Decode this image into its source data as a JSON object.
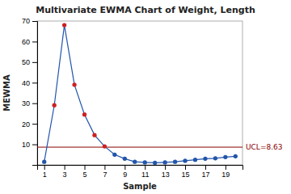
{
  "chart_data": {
    "type": "line",
    "title": "Multivariate EWMA Chart of Weight, Length",
    "x_label": "Sample",
    "y_label": "MEWMA",
    "x": [
      1,
      2,
      3,
      4,
      5,
      6,
      7,
      8,
      9,
      10,
      11,
      12,
      13,
      14,
      15,
      16,
      17,
      18,
      19,
      20
    ],
    "values": [
      1.5,
      29.0,
      68.0,
      39.0,
      24.5,
      14.5,
      9.0,
      5.0,
      3.0,
      1.5,
      1.2,
      1.0,
      1.2,
      1.5,
      2.0,
      2.5,
      3.0,
      3.2,
      3.8,
      4.2
    ],
    "color": "#2255AA",
    "colors": [
      "#2255AA",
      "#CC2222",
      "#CC2222",
      "#CC2222",
      "#CC2222",
      "#CC2222",
      "#CC2222",
      "#2255AA",
      "#2255AA",
      "#2255AA",
      "#2255AA",
      "#2255AA",
      "#2255AA",
      "#2255AA",
      "#2255AA",
      "#2255AA",
      "#2255AA",
      "#2255AA",
      "#2255AA",
      "#2255AA"
    ],
    "marker": "circle",
    "annotations": [
      {
        "y": 8.63,
        "label": "UCL=8.63",
        "color": "#8B0000"
      }
    ],
    "xlim": [
      0.3,
      20.7
    ],
    "xticks": [
      1,
      3,
      5,
      7,
      9,
      11,
      13,
      15,
      17,
      19
    ],
    "ylim": [
      0,
      70
    ],
    "yticks": [
      10,
      20,
      30,
      40,
      50,
      60,
      70
    ],
    "grid": false
  }
}
